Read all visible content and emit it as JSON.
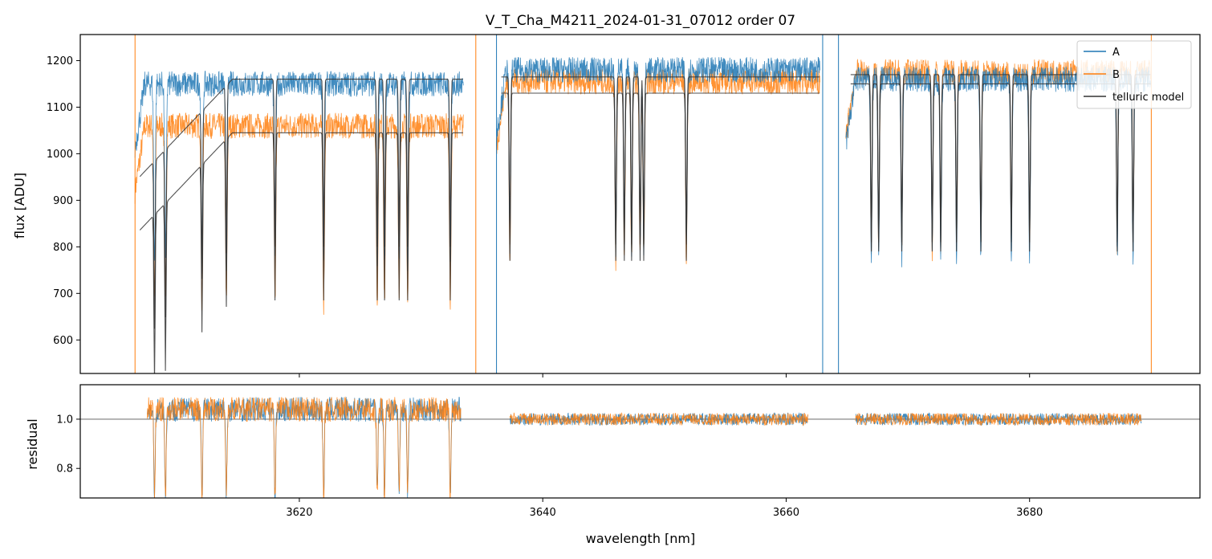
{
  "chart_data": [
    {
      "type": "line",
      "title": "V_T_Cha_M4211_2024-01-31_07012  order 07",
      "xlabel": "",
      "ylabel": "flux [ADU]",
      "xlim": [
        3602,
        3694
      ],
      "ylim": [
        528,
        1256
      ],
      "x_ticks": [
        3620,
        3640,
        3660,
        3680
      ],
      "y_ticks": [
        600,
        700,
        800,
        900,
        1000,
        1100,
        1200
      ],
      "y_tick_labels": [
        "600",
        "700",
        "800",
        "900",
        "1000",
        "1100",
        "1200"
      ],
      "legend_position": "upper right",
      "legend": [
        {
          "name": "A",
          "color": "#1f77b4"
        },
        {
          "name": "B",
          "color": "#ff7f0e"
        },
        {
          "name": "telluric model",
          "color": "#333333"
        }
      ],
      "segments": [
        {
          "x_start": 3606.5,
          "x_end": 3633.5,
          "A_level": 1150,
          "B_level": 1060,
          "model_A_level": 1160,
          "model_B_level": 1045
        },
        {
          "x_start": 3636.2,
          "x_end": 3662.8,
          "A_level": 1180,
          "B_level": 1155,
          "model_A_level": 1165,
          "model_B_level": 1130
        },
        {
          "x_start": 3664.9,
          "x_end": 3690.0,
          "A_level": 1160,
          "B_level": 1175,
          "model_A_level": 1150,
          "model_B_level": 1170
        }
      ],
      "absorption_lines_nm": [
        3608.1,
        3609.0,
        3612.0,
        3614.0,
        3618.0,
        3622.0,
        3626.4,
        3627.0,
        3628.2,
        3628.9,
        3632.4,
        3637.3,
        3646.0,
        3646.7,
        3647.3,
        3648.0,
        3648.3,
        3651.8,
        3667.0,
        3667.6,
        3669.5,
        3672.0,
        3672.7,
        3674.0,
        3676.0,
        3678.5,
        3680.0,
        3687.2,
        3688.5
      ]
    },
    {
      "type": "line",
      "title": "",
      "xlabel": "wavelength [nm]",
      "ylabel": "residual",
      "xlim": [
        3602,
        3694
      ],
      "ylim": [
        0.68,
        1.14
      ],
      "x_ticks": [
        3620,
        3640,
        3660,
        3680
      ],
      "x_tick_labels": [
        "3620",
        "3640",
        "3660",
        "3680"
      ],
      "y_ticks": [
        0.8,
        1.0
      ],
      "y_tick_labels": [
        "0.8",
        "1.0"
      ],
      "reference_line": 1.0,
      "series": [
        {
          "name": "A",
          "color": "#1f77b4"
        },
        {
          "name": "B",
          "color": "#ff7f0e"
        }
      ],
      "segments": [
        {
          "x_start": 3607.5,
          "x_end": 3633.3,
          "level": 1.04
        },
        {
          "x_start": 3637.3,
          "x_end": 3661.8,
          "level": 1.0
        },
        {
          "x_start": 3665.7,
          "x_end": 3689.2,
          "level": 1.0
        }
      ]
    }
  ]
}
